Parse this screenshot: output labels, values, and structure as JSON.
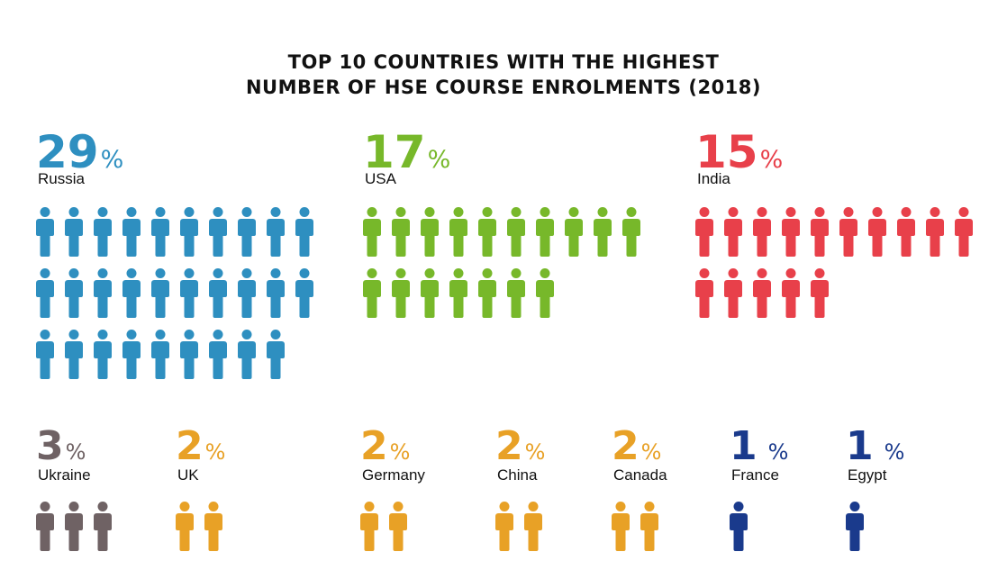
{
  "title_line1": "TOP 10 COUNTRIES WITH THE HIGHEST",
  "title_line2": "NUMBER OF HSE COURSE ENROLMENTS (2018)",
  "percent_symbol": "%",
  "chart_data": {
    "type": "pictograph",
    "title": "TOP 10 COUNTRIES WITH THE HIGHEST NUMBER OF HSE COURSE ENROLMENTS (2018)",
    "unit": "%",
    "items": [
      {
        "country": "Russia",
        "value": "29",
        "icons": 29,
        "color": "#2e8fc0"
      },
      {
        "country": "USA",
        "value": "17",
        "icons": 17,
        "color": "#77b82a"
      },
      {
        "country": "India",
        "value": "15",
        "icons": 15,
        "color": "#e8404a"
      },
      {
        "country": "Ukraine",
        "value": "3",
        "icons": 3,
        "color": "#6f6264"
      },
      {
        "country": "UK",
        "value": "2",
        "icons": 2,
        "color": "#e8a126"
      },
      {
        "country": "Germany",
        "value": "2",
        "icons": 2,
        "color": "#e8a126"
      },
      {
        "country": "China",
        "value": "2",
        "icons": 2,
        "color": "#e8a126"
      },
      {
        "country": "Canada",
        "value": "2",
        "icons": 2,
        "color": "#e8a126"
      },
      {
        "country": "France",
        "value": "1",
        "icons": 1,
        "color": "#1a3a8c"
      },
      {
        "country": "Egypt",
        "value": "1",
        "icons": 1,
        "color": "#1a3a8c"
      }
    ]
  }
}
